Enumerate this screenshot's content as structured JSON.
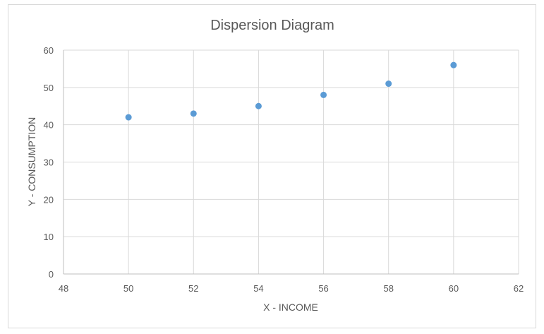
{
  "chart_data": {
    "type": "scatter",
    "title": "Dispersion Diagram",
    "xlabel": "X - INCOME",
    "ylabel": "Y - CONSUMPTION",
    "xlim": [
      48,
      62
    ],
    "ylim": [
      0,
      60
    ],
    "x_ticks": [
      48,
      50,
      52,
      54,
      56,
      58,
      60,
      62
    ],
    "y_ticks": [
      0,
      10,
      20,
      30,
      40,
      50,
      60
    ],
    "grid": true,
    "legend": "none",
    "marker_color": "#5b9bd5",
    "series": [
      {
        "x": [
          50,
          52,
          54,
          56,
          58,
          60
        ],
        "y": [
          42,
          43,
          45,
          48,
          51,
          56
        ]
      }
    ]
  }
}
